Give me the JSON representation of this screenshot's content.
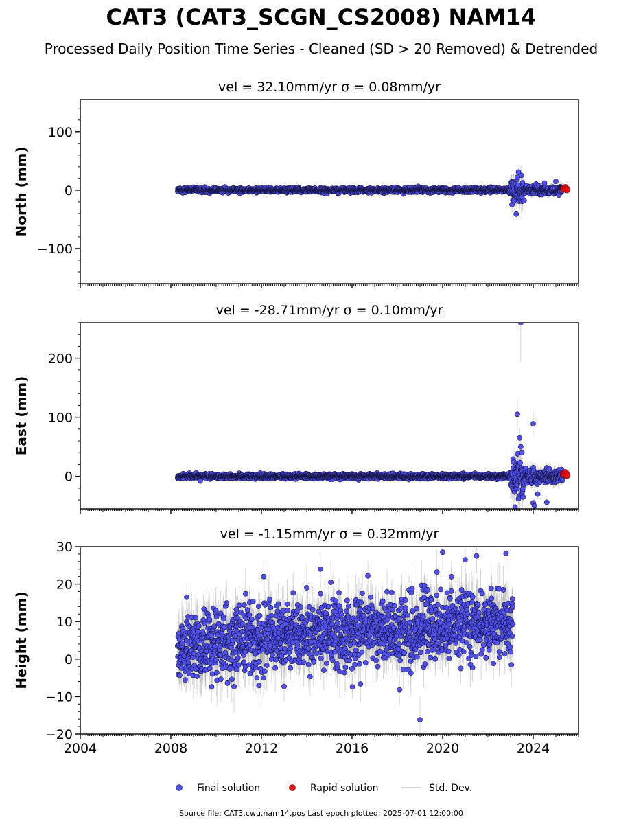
{
  "title": "CAT3 (CAT3_SCGN_CS2008) NAM14",
  "subtitle": "Processed Daily Position Time Series - Cleaned (SD > 20 Removed) & Detrended",
  "footer": "Source file: CAT3.cwu.nam14.pos  Last epoch plotted: 2025-07-01 12:00:00",
  "legend": {
    "placement": "bottom-center",
    "items": [
      {
        "label": "Final solution",
        "marker": "dot",
        "color": "#4f4ff2"
      },
      {
        "label": "Rapid solution",
        "marker": "dot",
        "color": "#e01010"
      },
      {
        "label": "Std. Dev.",
        "marker": "line",
        "color": "#c8c8c8"
      }
    ]
  },
  "colors": {
    "final": "#4f4ff2",
    "final_edge": "#14143c",
    "rapid": "#e01010",
    "rapid_edge": "#700000",
    "errorbar": "#8c8c8c",
    "axes": "#000000"
  },
  "chart_data": [
    {
      "type": "scatter",
      "panel_title": "vel = 32.10mm/yr   σ = 0.08mm/yr",
      "ylabel": "North (mm)",
      "xlim": [
        2004.0,
        2026.0
      ],
      "ylim": [
        -160,
        155
      ],
      "yticks": [
        -100,
        0,
        100
      ],
      "xticks": [
        2004,
        2008,
        2012,
        2016,
        2020,
        2024
      ],
      "show_xtick_labels": false,
      "grid": false,
      "series": [
        {
          "name": "Final solution",
          "x_range": [
            2008.3,
            2025.3
          ],
          "segments": [
            {
              "from": 2008.3,
              "to": 2023.0,
              "scatter": 2.0,
              "err": 3
            },
            {
              "from": 2023.0,
              "to": 2023.6,
              "scatter": 9.0,
              "err": 15
            },
            {
              "from": 2023.6,
              "to": 2025.3,
              "scatter": 3.5,
              "err": 7
            }
          ],
          "points": [
            {
              "x": 2023.25,
              "y": -41
            },
            {
              "x": 2023.35,
              "y": 31
            },
            {
              "x": 2023.3,
              "y": 22
            },
            {
              "x": 2023.15,
              "y": -18
            },
            {
              "x": 2023.5,
              "y": -12
            },
            {
              "x": 2024.5,
              "y": 12
            },
            {
              "x": 2025.0,
              "y": 15
            }
          ]
        },
        {
          "name": "Rapid solution",
          "x_range": [
            2025.3,
            2025.5
          ],
          "points": [
            {
              "x": 2025.35,
              "y": 2
            },
            {
              "x": 2025.42,
              "y": 4
            },
            {
              "x": 2025.48,
              "y": 1
            }
          ]
        }
      ]
    },
    {
      "type": "scatter",
      "panel_title": "vel = -28.71mm/yr   σ = 0.10mm/yr",
      "ylabel": "East (mm)",
      "xlim": [
        2004.0,
        2026.0
      ],
      "ylim": [
        -55,
        260
      ],
      "yticks": [
        0,
        100,
        200
      ],
      "xticks": [
        2004,
        2008,
        2012,
        2016,
        2020,
        2024
      ],
      "show_xtick_labels": false,
      "grid": false,
      "series": [
        {
          "name": "Final solution",
          "x_range": [
            2008.3,
            2025.3
          ],
          "segments": [
            {
              "from": 2008.3,
              "to": 2023.0,
              "scatter": 2.0,
              "err": 3
            },
            {
              "from": 2023.0,
              "to": 2023.6,
              "scatter": 14.0,
              "err": 20
            },
            {
              "from": 2023.6,
              "to": 2025.3,
              "scatter": 6.0,
              "err": 9
            }
          ],
          "points": [
            {
              "x": 2023.45,
              "y": 260
            },
            {
              "x": 2023.3,
              "y": 105
            },
            {
              "x": 2023.4,
              "y": 65
            },
            {
              "x": 2023.45,
              "y": 50
            },
            {
              "x": 2023.5,
              "y": 40
            },
            {
              "x": 2023.2,
              "y": -52
            },
            {
              "x": 2023.35,
              "y": -38
            },
            {
              "x": 2023.55,
              "y": -35
            },
            {
              "x": 2024.0,
              "y": 89
            },
            {
              "x": 2024.0,
              "y": -45
            },
            {
              "x": 2024.05,
              "y": -50
            },
            {
              "x": 2024.6,
              "y": -44
            },
            {
              "x": 2024.2,
              "y": -30
            },
            {
              "x": 2009.3,
              "y": -8
            }
          ]
        },
        {
          "name": "Rapid solution",
          "x_range": [
            2025.3,
            2025.5
          ],
          "points": [
            {
              "x": 2025.35,
              "y": 4
            },
            {
              "x": 2025.42,
              "y": 6
            },
            {
              "x": 2025.48,
              "y": 2
            }
          ]
        }
      ]
    },
    {
      "type": "scatter",
      "panel_title": "vel = -1.15mm/yr   σ = 0.32mm/yr",
      "ylabel": "Height (mm)",
      "xlabel": "",
      "xlim": [
        2004.0,
        2026.0
      ],
      "ylim": [
        -20,
        30
      ],
      "yticks": [
        -20,
        -10,
        0,
        10,
        20,
        30
      ],
      "xticks": [
        2004,
        2008,
        2012,
        2016,
        2020,
        2024
      ],
      "show_xtick_labels": true,
      "grid": false,
      "series": [
        {
          "name": "Final solution",
          "x_range": [
            2008.3,
            2023.1
          ],
          "trend": [
            {
              "x": 2008.3,
              "y": 4
            },
            {
              "x": 2023.1,
              "y": 10
            }
          ],
          "segments": [
            {
              "from": 2008.3,
              "to": 2023.1,
              "scatter": 4.5,
              "err": 5
            }
          ],
          "points": [
            {
              "x": 2019.0,
              "y": -16.2
            },
            {
              "x": 2018.1,
              "y": -8.2
            },
            {
              "x": 2020.0,
              "y": 28.5
            },
            {
              "x": 2022.8,
              "y": 28.2
            },
            {
              "x": 2021.5,
              "y": 27.5
            },
            {
              "x": 2021.0,
              "y": 26.5
            },
            {
              "x": 2012.1,
              "y": 22
            },
            {
              "x": 2014.6,
              "y": 24
            },
            {
              "x": 2016.7,
              "y": 22.2
            },
            {
              "x": 2013.0,
              "y": -7.3
            },
            {
              "x": 2010.5,
              "y": -6.4
            },
            {
              "x": 2009.8,
              "y": -7.4
            },
            {
              "x": 2011.8,
              "y": -5.0
            },
            {
              "x": 2008.7,
              "y": 16.5
            },
            {
              "x": 2020.8,
              "y": -2.5
            }
          ]
        }
      ]
    }
  ]
}
